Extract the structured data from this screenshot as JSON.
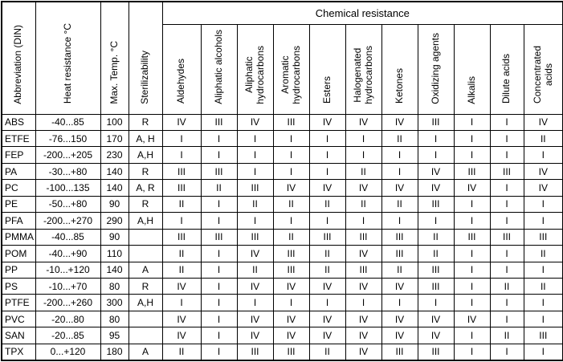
{
  "table": {
    "title": "Chemical resistance",
    "columns": [
      "Abbreviation (DIN)",
      "Heat resistance °C",
      "Max. Temp. °C",
      "Sterilizability"
    ],
    "chemical_columns": [
      "Aldehydes",
      "Aliphatic alcohols",
      "Aliphatic\nhydrocarbons",
      "Aromatic\nhydrocarbons",
      "Esters",
      "Halogenated\nhydrocarbons",
      "Ketones",
      "Oxidizing agents",
      "Alkalis",
      "Dilute acids",
      "Concentrated\nacids"
    ],
    "rows": [
      {
        "abbreviation": "ABS",
        "heat_resistance": "-40...85",
        "max_temp": "100",
        "sterilizability": "R",
        "resistance": [
          "IV",
          "III",
          "IV",
          "III",
          "IV",
          "IV",
          "IV",
          "III",
          "I",
          "I",
          "IV"
        ]
      },
      {
        "abbreviation": "ETFE",
        "heat_resistance": "-76...150",
        "max_temp": "170",
        "sterilizability": "A, H",
        "resistance": [
          "I",
          "I",
          "I",
          "I",
          "I",
          "I",
          "II",
          "I",
          "I",
          "I",
          "II"
        ]
      },
      {
        "abbreviation": "FEP",
        "heat_resistance": "-200...+205",
        "max_temp": "230",
        "sterilizability": "A,H",
        "resistance": [
          "I",
          "I",
          "I",
          "I",
          "I",
          "I",
          "I",
          "I",
          "I",
          "I",
          "I"
        ]
      },
      {
        "abbreviation": "PA",
        "heat_resistance": "-30...+80",
        "max_temp": "140",
        "sterilizability": "R",
        "resistance": [
          "III",
          "III",
          "I",
          "I",
          "I",
          "II",
          "I",
          "IV",
          "III",
          "III",
          "IV"
        ]
      },
      {
        "abbreviation": "PC",
        "heat_resistance": "-100...135",
        "max_temp": "140",
        "sterilizability": "A, R",
        "resistance": [
          "III",
          "II",
          "III",
          "IV",
          "IV",
          "IV",
          "IV",
          "IV",
          "IV",
          "I",
          "IV"
        ]
      },
      {
        "abbreviation": "PE",
        "heat_resistance": "-50...+80",
        "max_temp": "90",
        "sterilizability": "R",
        "resistance": [
          "II",
          "I",
          "II",
          "II",
          "II",
          "II",
          "II",
          "III",
          "I",
          "I",
          "I"
        ]
      },
      {
        "abbreviation": "PFA",
        "heat_resistance": "-200...+270",
        "max_temp": "290",
        "sterilizability": "A,H",
        "resistance": [
          "I",
          "I",
          "I",
          "I",
          "I",
          "I",
          "I",
          "I",
          "I",
          "I",
          "I"
        ]
      },
      {
        "abbreviation": "PMMA",
        "heat_resistance": "-40...85",
        "max_temp": "90",
        "sterilizability": "",
        "resistance": [
          "III",
          "III",
          "III",
          "II",
          "III",
          "III",
          "III",
          "II",
          "III",
          "III",
          "III"
        ]
      },
      {
        "abbreviation": "POM",
        "heat_resistance": "-40...+90",
        "max_temp": "110",
        "sterilizability": "",
        "resistance": [
          "II",
          "I",
          "IV",
          "III",
          "II",
          "IV",
          "III",
          "II",
          "I",
          "I",
          "II"
        ]
      },
      {
        "abbreviation": "PP",
        "heat_resistance": "-10...+120",
        "max_temp": "140",
        "sterilizability": "A",
        "resistance": [
          "II",
          "I",
          "II",
          "III",
          "II",
          "III",
          "II",
          "III",
          "I",
          "I",
          "I"
        ]
      },
      {
        "abbreviation": "PS",
        "heat_resistance": "-10...+70",
        "max_temp": "80",
        "sterilizability": "R",
        "resistance": [
          "IV",
          "I",
          "IV",
          "IV",
          "IV",
          "IV",
          "IV",
          "III",
          "I",
          "II",
          "II"
        ]
      },
      {
        "abbreviation": "PTFE",
        "heat_resistance": "-200...+260",
        "max_temp": "300",
        "sterilizability": "A,H",
        "resistance": [
          "I",
          "I",
          "I",
          "I",
          "I",
          "I",
          "I",
          "I",
          "I",
          "I",
          "I"
        ]
      },
      {
        "abbreviation": "PVC",
        "heat_resistance": "-20...80",
        "max_temp": "80",
        "sterilizability": "",
        "resistance": [
          "IV",
          "I",
          "IV",
          "IV",
          "IV",
          "IV",
          "IV",
          "IV",
          "IV",
          "I",
          "I"
        ]
      },
      {
        "abbreviation": "SAN",
        "heat_resistance": "-20...85",
        "max_temp": "95",
        "sterilizability": "",
        "resistance": [
          "IV",
          "I",
          "IV",
          "IV",
          "IV",
          "IV",
          "IV",
          "IV",
          "I",
          "II",
          "III"
        ]
      },
      {
        "abbreviation": "TPX",
        "heat_resistance": "0...+120",
        "max_temp": "180",
        "sterilizability": "A",
        "resistance": [
          "II",
          "I",
          "III",
          "III",
          "II",
          "IV",
          "III",
          "III",
          "I",
          "I",
          "I"
        ]
      }
    ]
  }
}
